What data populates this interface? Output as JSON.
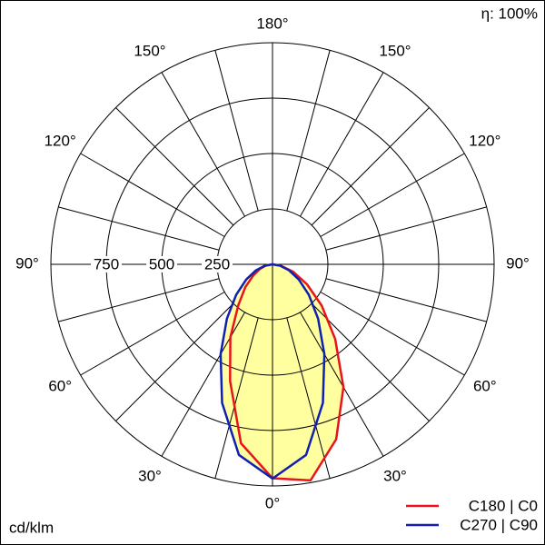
{
  "chart_data": {
    "type": "polar",
    "title": "η: 100%",
    "unit_label": "cd/klm",
    "rlim": [
      0,
      1000
    ],
    "rticks": [
      250,
      500,
      750
    ],
    "angle_ticks": [
      {
        "value": 0,
        "label": "0°"
      },
      {
        "value": 30,
        "label": "30°"
      },
      {
        "value": 60,
        "label": "60°"
      },
      {
        "value": 90,
        "label": "90°"
      },
      {
        "value": 120,
        "label": "120°"
      },
      {
        "value": 150,
        "label": "150°"
      },
      {
        "value": 180,
        "label": "180°"
      }
    ],
    "angle_grid": [
      15,
      30,
      45,
      60,
      75,
      105,
      120,
      135,
      150,
      165
    ],
    "grid": true,
    "fill_color": "#ffffa0",
    "x": [
      -90,
      -80,
      -70,
      -60,
      -50,
      -40,
      -30,
      -20,
      -10,
      0,
      10,
      20,
      30,
      40,
      50,
      60,
      70,
      80,
      90
    ],
    "series": [
      {
        "name": "C180 | C0",
        "color": "#e8141b",
        "values": [
          0,
          30,
          60,
          100,
          160,
          240,
          380,
          560,
          820,
          965,
          990,
          840,
          640,
          440,
          290,
          180,
          100,
          40,
          0
        ]
      },
      {
        "name": "C270 | C90",
        "color": "#1020b0",
        "values": [
          0,
          35,
          80,
          137,
          214,
          320,
          468,
          665,
          873,
          967,
          873,
          665,
          468,
          320,
          214,
          137,
          80,
          35,
          0
        ]
      }
    ],
    "legend": "bottom-right"
  }
}
